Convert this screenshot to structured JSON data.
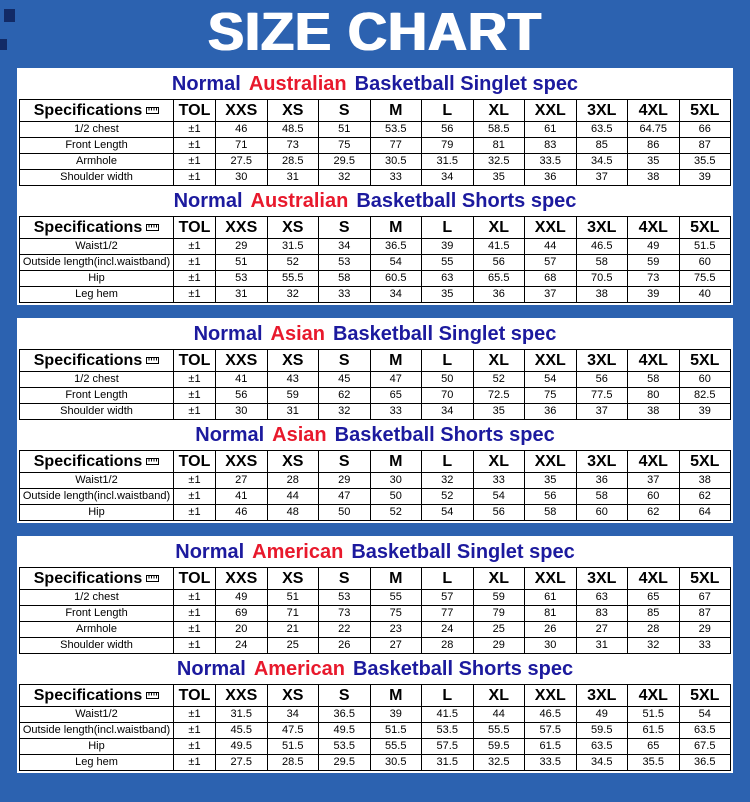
{
  "page": {
    "title": "SIZE CHART"
  },
  "colors": {
    "background": "#2c62b0",
    "title_text": "#ffffff",
    "table_title_blue": "#1c1a9e",
    "table_title_red": "#e8192c",
    "table_text": "#000000",
    "panel_background": "#ffffff"
  },
  "icons": {
    "specifications_icon": "ruler-icon"
  },
  "chart_data": [
    {
      "type": "table",
      "title": "Normal Australian Basketball Singlet spec",
      "title_parts": [
        "Normal",
        "Australian",
        "Basketball Singlet spec"
      ],
      "columns": [
        "Specifications",
        "TOL",
        "XXS",
        "XS",
        "S",
        "M",
        "L",
        "XL",
        "XXL",
        "3XL",
        "4XL",
        "5XL"
      ],
      "rows": [
        [
          "1/2 chest",
          "±1",
          "46",
          "48.5",
          "51",
          "53.5",
          "56",
          "58.5",
          "61",
          "63.5",
          "64.75",
          "66"
        ],
        [
          "Front Length",
          "±1",
          "71",
          "73",
          "75",
          "77",
          "79",
          "81",
          "83",
          "85",
          "86",
          "87"
        ],
        [
          "Armhole",
          "±1",
          "27.5",
          "28.5",
          "29.5",
          "30.5",
          "31.5",
          "32.5",
          "33.5",
          "34.5",
          "35",
          "35.5"
        ],
        [
          "Shoulder width",
          "±1",
          "30",
          "31",
          "32",
          "33",
          "34",
          "35",
          "36",
          "37",
          "38",
          "39"
        ]
      ]
    },
    {
      "type": "table",
      "title": "Normal Australian Basketball Shorts spec",
      "title_parts": [
        "Normal",
        "Australian",
        "Basketball Shorts spec"
      ],
      "columns": [
        "Specifications",
        "TOL",
        "XXS",
        "XS",
        "S",
        "M",
        "L",
        "XL",
        "XXL",
        "3XL",
        "4XL",
        "5XL"
      ],
      "rows": [
        [
          "Waist1/2",
          "±1",
          "29",
          "31.5",
          "34",
          "36.5",
          "39",
          "41.5",
          "44",
          "46.5",
          "49",
          "51.5"
        ],
        [
          "Outside length(incl.waistband)",
          "±1",
          "51",
          "52",
          "53",
          "54",
          "55",
          "56",
          "57",
          "58",
          "59",
          "60"
        ],
        [
          "Hip",
          "±1",
          "53",
          "55.5",
          "58",
          "60.5",
          "63",
          "65.5",
          "68",
          "70.5",
          "73",
          "75.5"
        ],
        [
          "Leg hem",
          "±1",
          "31",
          "32",
          "33",
          "34",
          "35",
          "36",
          "37",
          "38",
          "39",
          "40"
        ]
      ]
    },
    {
      "type": "table",
      "title": "Normal Asian Basketball Singlet spec",
      "title_parts": [
        "Normal",
        "Asian",
        "Basketball Singlet spec"
      ],
      "columns": [
        "Specifications",
        "TOL",
        "XXS",
        "XS",
        "S",
        "M",
        "L",
        "XL",
        "XXL",
        "3XL",
        "4XL",
        "5XL"
      ],
      "rows": [
        [
          "1/2 chest",
          "±1",
          "41",
          "43",
          "45",
          "47",
          "50",
          "52",
          "54",
          "56",
          "58",
          "60"
        ],
        [
          "Front Length",
          "±1",
          "56",
          "59",
          "62",
          "65",
          "70",
          "72.5",
          "75",
          "77.5",
          "80",
          "82.5"
        ],
        [
          "Shoulder width",
          "±1",
          "30",
          "31",
          "32",
          "33",
          "34",
          "35",
          "36",
          "37",
          "38",
          "39"
        ]
      ]
    },
    {
      "type": "table",
      "title": "Normal Asian Basketball Shorts spec",
      "title_parts": [
        "Normal",
        "Asian",
        "Basketball Shorts spec"
      ],
      "columns": [
        "Specifications",
        "TOL",
        "XXS",
        "XS",
        "S",
        "M",
        "L",
        "XL",
        "XXL",
        "3XL",
        "4XL",
        "5XL"
      ],
      "rows": [
        [
          "Waist1/2",
          "±1",
          "27",
          "28",
          "29",
          "30",
          "32",
          "33",
          "35",
          "36",
          "37",
          "38"
        ],
        [
          "Outside length(incl.waistband)",
          "±1",
          "41",
          "44",
          "47",
          "50",
          "52",
          "54",
          "56",
          "58",
          "60",
          "62"
        ],
        [
          "Hip",
          "±1",
          "46",
          "48",
          "50",
          "52",
          "54",
          "56",
          "58",
          "60",
          "62",
          "64"
        ]
      ]
    },
    {
      "type": "table",
      "title": "Normal American Basketball Singlet spec",
      "title_parts": [
        "Normal",
        "American",
        "Basketball Singlet spec"
      ],
      "columns": [
        "Specifications",
        "TOL",
        "XXS",
        "XS",
        "S",
        "M",
        "L",
        "XL",
        "XXL",
        "3XL",
        "4XL",
        "5XL"
      ],
      "rows": [
        [
          "1/2 chest",
          "±1",
          "49",
          "51",
          "53",
          "55",
          "57",
          "59",
          "61",
          "63",
          "65",
          "67"
        ],
        [
          "Front Length",
          "±1",
          "69",
          "71",
          "73",
          "75",
          "77",
          "79",
          "81",
          "83",
          "85",
          "87"
        ],
        [
          "Armhole",
          "±1",
          "20",
          "21",
          "22",
          "23",
          "24",
          "25",
          "26",
          "27",
          "28",
          "29"
        ],
        [
          "Shoulder width",
          "±1",
          "24",
          "25",
          "26",
          "27",
          "28",
          "29",
          "30",
          "31",
          "32",
          "33"
        ]
      ]
    },
    {
      "type": "table",
      "title": "Normal American Basketball Shorts spec",
      "title_parts": [
        "Normal",
        "American",
        "Basketball Shorts spec"
      ],
      "columns": [
        "Specifications",
        "TOL",
        "XXS",
        "XS",
        "S",
        "M",
        "L",
        "XL",
        "XXL",
        "3XL",
        "4XL",
        "5XL"
      ],
      "rows": [
        [
          "Waist1/2",
          "±1",
          "31.5",
          "34",
          "36.5",
          "39",
          "41.5",
          "44",
          "46.5",
          "49",
          "51.5",
          "54"
        ],
        [
          "Outside length(incl.waistband)",
          "±1",
          "45.5",
          "47.5",
          "49.5",
          "51.5",
          "53.5",
          "55.5",
          "57.5",
          "59.5",
          "61.5",
          "63.5"
        ],
        [
          "Hip",
          "±1",
          "49.5",
          "51.5",
          "53.5",
          "55.5",
          "57.5",
          "59.5",
          "61.5",
          "63.5",
          "65",
          "67.5"
        ],
        [
          "Leg hem",
          "±1",
          "27.5",
          "28.5",
          "29.5",
          "30.5",
          "31.5",
          "32.5",
          "33.5",
          "34.5",
          "35.5",
          "36.5"
        ]
      ]
    }
  ]
}
